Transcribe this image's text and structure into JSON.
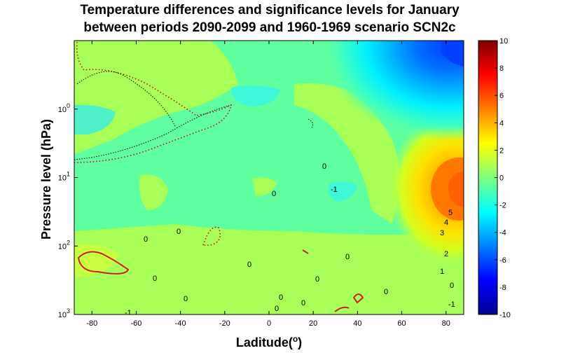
{
  "chart_data": {
    "type": "heatmap",
    "title_line1": "Temperature differences and significance levels for January",
    "title_line2": "between periods 2090-2099 and 1960-1969 scenario SCN2c",
    "xlabel": "Laditude(",
    "xlabel_sup": "o",
    "xlabel_end": ")",
    "ylabel": "Pressure level (hPa)",
    "xlim": [
      -88,
      88
    ],
    "ylim_hpa": [
      1000,
      0.1
    ],
    "yscale": "log-reversed",
    "x_ticks": [
      -80,
      -60,
      -40,
      -20,
      0,
      20,
      40,
      60,
      80
    ],
    "y_ticks": [
      {
        "base": "10",
        "exp": "0"
      },
      {
        "base": "10",
        "exp": "1"
      },
      {
        "base": "10",
        "exp": "2"
      },
      {
        "base": "10",
        "exp": "3"
      }
    ],
    "colorbar": {
      "range": [
        -10,
        10
      ],
      "ticks": [
        10,
        8,
        6,
        4,
        2,
        0,
        -2,
        -4,
        -6,
        -8,
        -10
      ]
    },
    "contour_labels": [
      "0",
      "-1",
      "0",
      "0",
      "0",
      "0",
      "0",
      "0",
      "0",
      "0",
      "0",
      "0",
      "0",
      "0",
      "5",
      "4",
      "3",
      "2",
      "1",
      "0",
      "-1",
      "-1"
    ],
    "background_value": 0
  }
}
